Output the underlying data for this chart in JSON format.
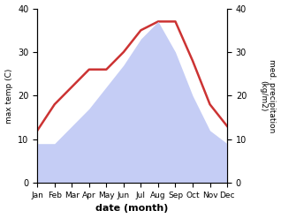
{
  "months": [
    "Jan",
    "Feb",
    "Mar",
    "Apr",
    "May",
    "Jun",
    "Jul",
    "Aug",
    "Sep",
    "Oct",
    "Nov",
    "Dec"
  ],
  "max_temp": [
    12,
    18,
    22,
    26,
    26,
    30,
    35,
    37,
    37,
    28,
    18,
    13
  ],
  "precipitation": [
    9,
    9,
    13,
    17,
    22,
    27,
    33,
    37,
    30,
    20,
    12,
    9
  ],
  "temp_color": "#cc3333",
  "precip_fill_color": "#c5cdf5",
  "precip_edge_color": "#c5cdf5",
  "ylabel_left": "max temp (C)",
  "ylabel_right": "med. precipitation\n(kg/m2)",
  "xlabel": "date (month)",
  "ylim": [
    0,
    40
  ],
  "background_color": "#ffffff"
}
